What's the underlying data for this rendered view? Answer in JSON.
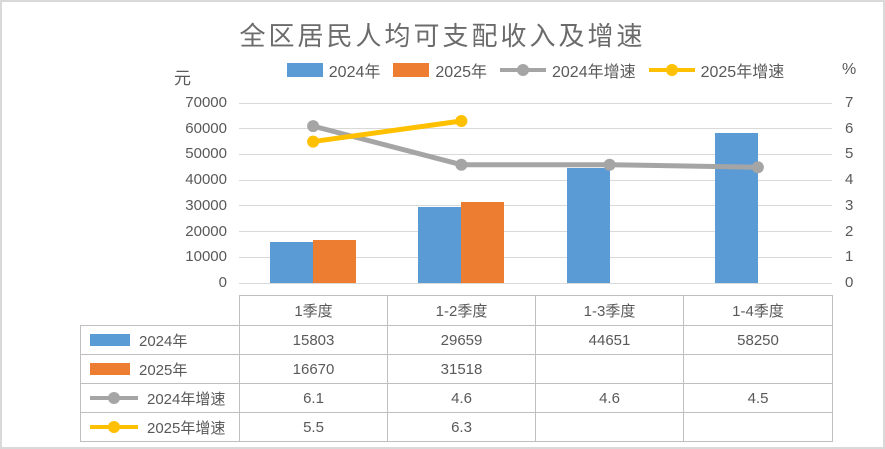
{
  "chart_data": {
    "type": "combo-bar-line",
    "title": "全区居民人均可支配收入及增速",
    "categories": [
      "1季度",
      "1-2季度",
      "1-3季度",
      "1-4季度"
    ],
    "series": [
      {
        "name": "2024年",
        "type": "bar",
        "axis": "left",
        "color": "#5B9BD5",
        "values": [
          15803,
          29659,
          44651,
          58250
        ]
      },
      {
        "name": "2025年",
        "type": "bar",
        "axis": "left",
        "color": "#ED7D31",
        "values": [
          16670,
          31518,
          null,
          null
        ]
      },
      {
        "name": "2024年增速",
        "type": "line",
        "axis": "right",
        "color": "#A5A5A5",
        "values": [
          6.1,
          4.6,
          4.6,
          4.5
        ]
      },
      {
        "name": "2025年增速",
        "type": "line",
        "axis": "right",
        "color": "#FFC000",
        "values": [
          5.5,
          6.3,
          null,
          null
        ]
      }
    ],
    "left_axis": {
      "unit": "元",
      "min": 0,
      "max": 70000,
      "step": 10000,
      "tick_labels_top_down": [
        "70000",
        "60000",
        "50000",
        "40000",
        "30000",
        "20000",
        "10000",
        "0"
      ]
    },
    "right_axis": {
      "unit": "%",
      "min": 0,
      "max": 7,
      "step": 1,
      "tick_labels_top_down": [
        "7",
        "6",
        "5",
        "4",
        "3",
        "2",
        "1",
        "0"
      ]
    },
    "legend_position": "top",
    "grid": true,
    "show_data_table": true,
    "data_table_corner": "",
    "style": {
      "background": "#FFFFFF",
      "outer_border_color": "#D9D9D9",
      "grid_color": "#D9D9D9",
      "text_color": "#595959",
      "title_color": "#6B6B6B",
      "table_border_color": "#BFBFBF"
    }
  }
}
